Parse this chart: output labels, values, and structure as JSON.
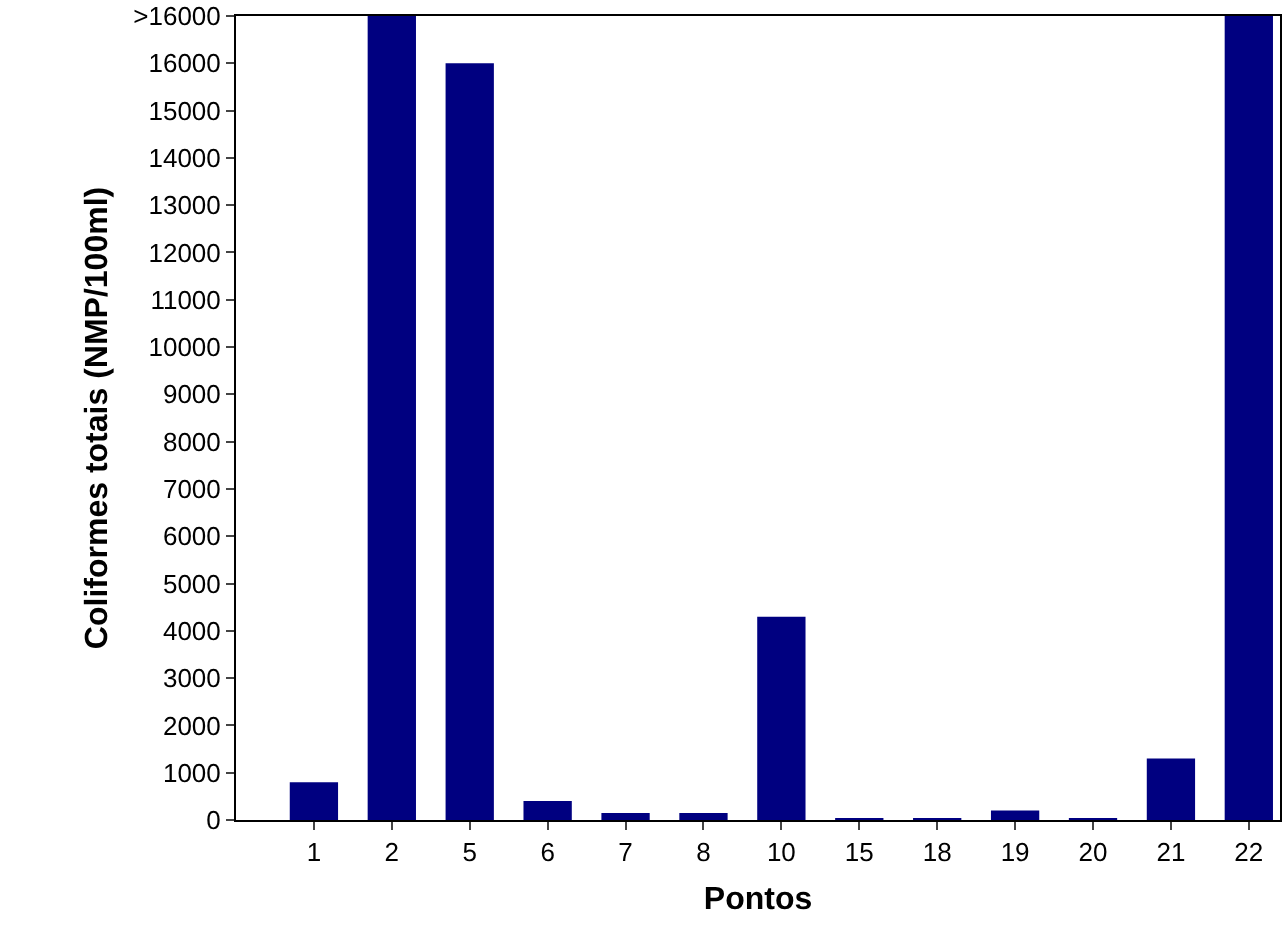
{
  "chart_data": {
    "type": "bar",
    "xlabel": "Pontos",
    "ylabel": "Coliformes totais (NMP/100ml)",
    "categories": [
      "1",
      "2",
      "5",
      "6",
      "7",
      "8",
      "10",
      "15",
      "18",
      "19",
      "20",
      "21",
      "22"
    ],
    "values": [
      800,
      17000,
      16000,
      400,
      150,
      150,
      4300,
      20,
      20,
      200,
      20,
      1300,
      17000
    ],
    "color": "#000080",
    "ylim": [
      0,
      17000
    ],
    "yticks": [
      0,
      1000,
      2000,
      3000,
      4000,
      5000,
      6000,
      7000,
      8000,
      9000,
      10000,
      11000,
      12000,
      13000,
      14000,
      15000,
      16000,
      {
        "value": 17000,
        "label": ">16000"
      }
    ]
  }
}
